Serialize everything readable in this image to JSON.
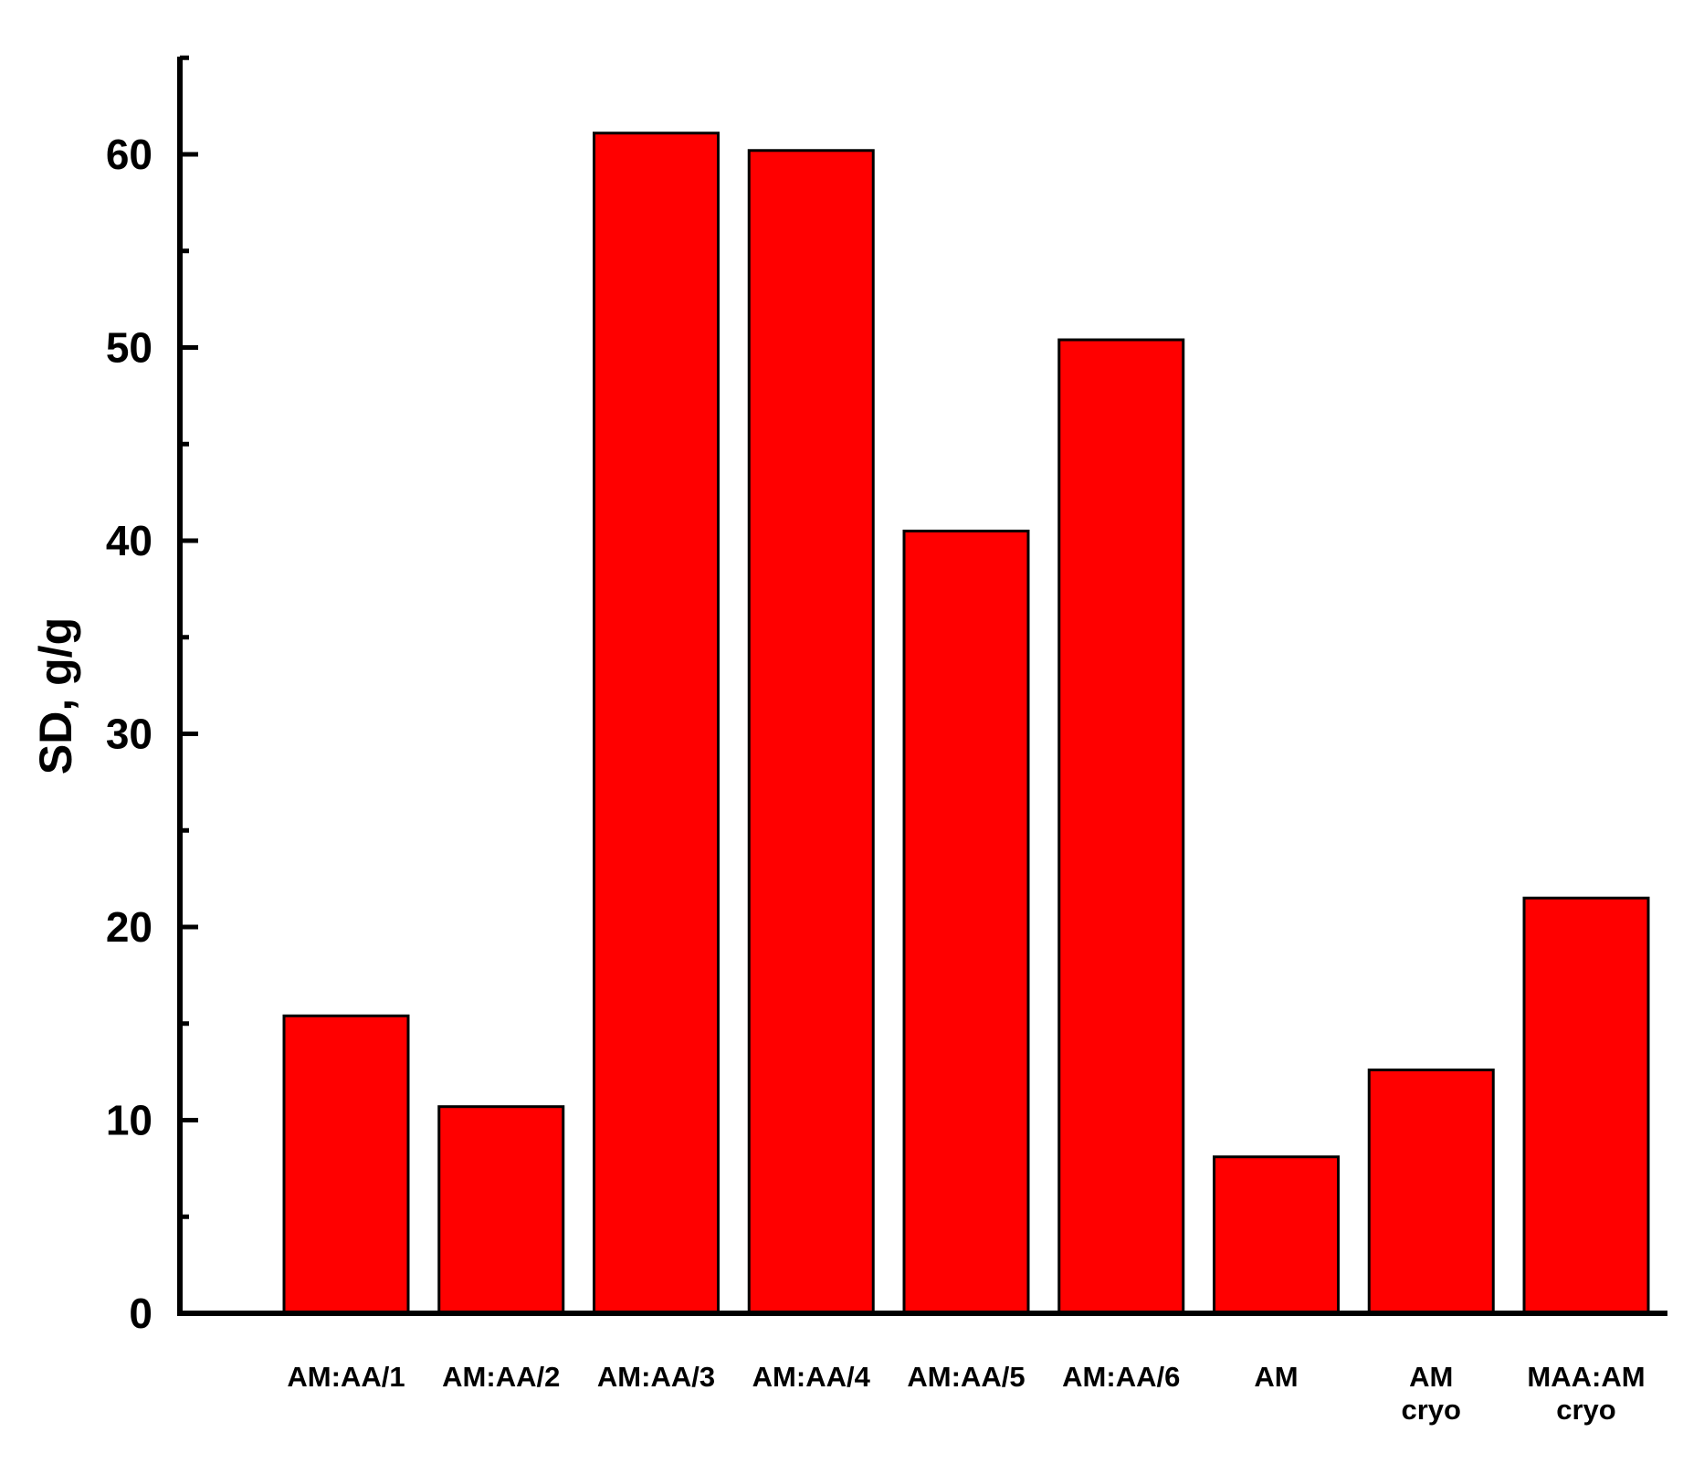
{
  "chart_data": {
    "type": "bar",
    "categories": [
      [
        "AM:AA/1"
      ],
      [
        "AM:AA/2"
      ],
      [
        "AM:AA/3"
      ],
      [
        "AM:AA/4"
      ],
      [
        "AM:AA/5"
      ],
      [
        "AM:AA/6"
      ],
      [
        "AM"
      ],
      [
        "AM",
        "cryo"
      ],
      [
        "MAA:AM",
        "cryo"
      ]
    ],
    "values": [
      15.4,
      10.7,
      61.1,
      60.2,
      40.5,
      50.4,
      8.1,
      12.6,
      21.5
    ],
    "title": "",
    "xlabel": "",
    "ylabel": "SD, g/g",
    "ylim": [
      0,
      65
    ],
    "yticks": [
      0,
      10,
      20,
      30,
      40,
      50,
      60
    ],
    "yminor_step": 5,
    "grid": false,
    "colors": {
      "bar_fill": "#ff0000",
      "bar_stroke": "#000000",
      "axis": "#000000"
    }
  }
}
